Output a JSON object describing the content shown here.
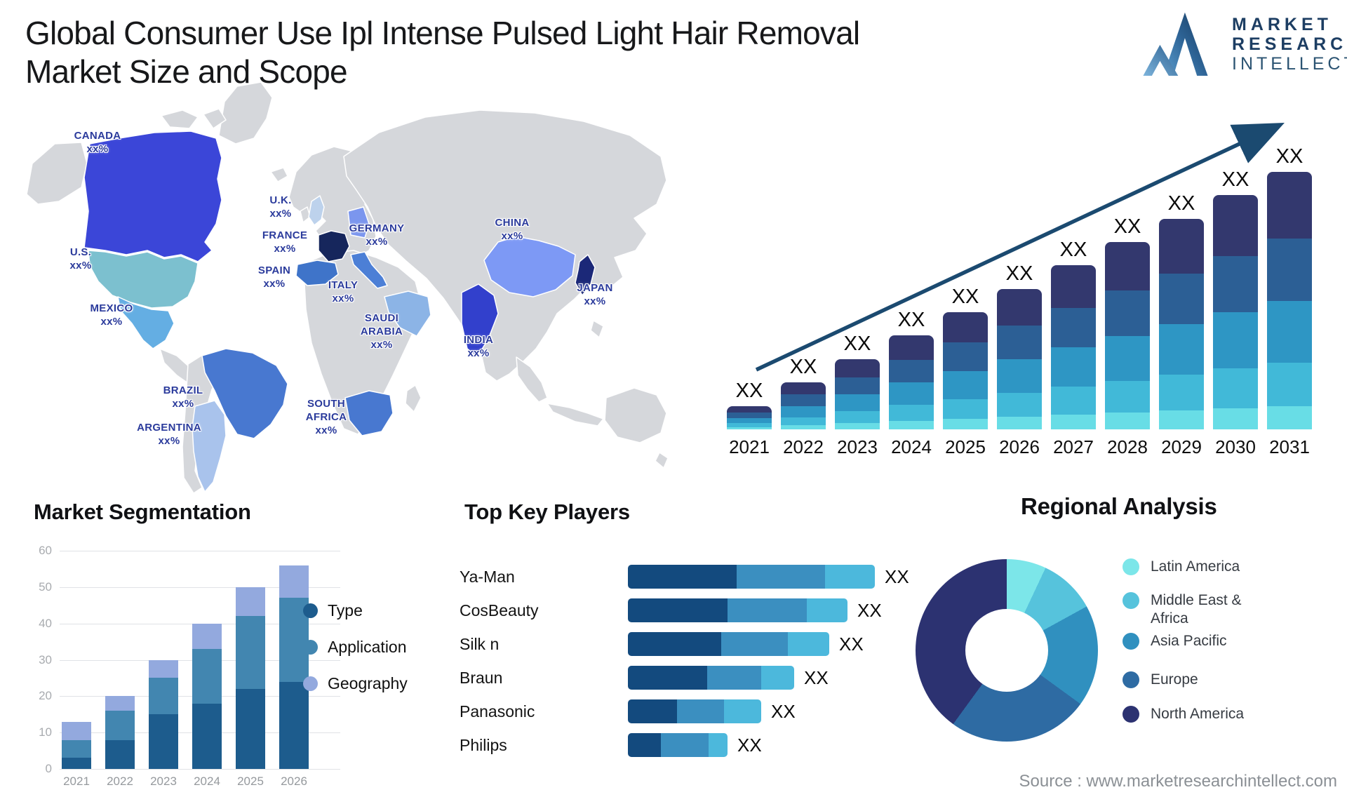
{
  "title_line1": "Global Consumer Use Ipl Intense Pulsed Light Hair Removal",
  "title_line2": "Market Size and Scope",
  "logo": {
    "icon": "mountain-logo",
    "lines": [
      "MARKET",
      "RESEARCH",
      "INTELLECT"
    ]
  },
  "source": "Source : www.marketresearchintellect.com",
  "map": {
    "land_color": "#d5d7db",
    "label_color": "#2b3b9c",
    "countries": [
      {
        "id": "canada",
        "name": "CANADA",
        "value": "xx%",
        "color": "#3b46d8"
      },
      {
        "id": "usa",
        "name": "U.S.",
        "value": "xx%",
        "color": "#7cc0cf"
      },
      {
        "id": "mexico",
        "name": "MEXICO",
        "value": "xx%",
        "color": "#64aee3"
      },
      {
        "id": "brazil",
        "name": "BRAZIL",
        "value": "xx%",
        "color": "#4878d0"
      },
      {
        "id": "argentina",
        "name": "ARGENTINA",
        "value": "xx%",
        "color": "#a9c3ec"
      },
      {
        "id": "uk",
        "name": "U.K.",
        "value": "xx%",
        "color": "#bdd2ec"
      },
      {
        "id": "france",
        "name": "FRANCE",
        "value": "xx%",
        "color": "#16265c"
      },
      {
        "id": "spain",
        "name": "SPAIN",
        "value": "xx%",
        "color": "#3f74c9"
      },
      {
        "id": "germany",
        "name": "GERMANY",
        "value": "xx%",
        "color": "#7b96ee"
      },
      {
        "id": "italy",
        "name": "ITALY",
        "value": "xx%",
        "color": "#4c7fd6"
      },
      {
        "id": "saudi",
        "name": "SAUDI ARABIA",
        "value": "xx%",
        "color": "#8cb4e6"
      },
      {
        "id": "south_africa",
        "name": "SOUTH AFRICA",
        "value": "xx%",
        "color": "#4878d0"
      },
      {
        "id": "china",
        "name": "CHINA",
        "value": "xx%",
        "color": "#7d99f5"
      },
      {
        "id": "india",
        "name": "INDIA",
        "value": "xx%",
        "color": "#3240cc"
      },
      {
        "id": "japan",
        "name": "JAPAN",
        "value": "xx%",
        "color": "#1b2878"
      }
    ]
  },
  "chart_data": [
    {
      "id": "market-forecast",
      "type": "bar",
      "stacked": true,
      "categories": [
        "2021",
        "2022",
        "2023",
        "2024",
        "2025",
        "2026",
        "2027",
        "2028",
        "2029",
        "2030",
        "2031"
      ],
      "bar_label": "XX",
      "relative_heights": [
        33,
        67,
        100,
        134,
        167,
        200,
        234,
        267,
        300,
        334,
        367
      ],
      "segment_shares_bottom_to_top": [
        0.09,
        0.17,
        0.24,
        0.24,
        0.26
      ],
      "segment_colors_bottom_to_top": [
        "#68dde6",
        "#41b9d8",
        "#2e96c4",
        "#2c5f95",
        "#33386e"
      ],
      "trend_arrow": true,
      "arrow_color": "#1b4a70",
      "note": "values shown as XX placeholders; linear growth depicted"
    },
    {
      "id": "market-segmentation",
      "type": "bar",
      "stacked": true,
      "title": "Market Segmentation",
      "categories": [
        "2021",
        "2022",
        "2023",
        "2024",
        "2025",
        "2026"
      ],
      "series": [
        {
          "name": "Type",
          "color": "#1d5c8d",
          "values": [
            3,
            8,
            15,
            18,
            22,
            24
          ]
        },
        {
          "name": "Application",
          "color": "#4286b0",
          "values": [
            5,
            8,
            10,
            15,
            20,
            23
          ]
        },
        {
          "name": "Geography",
          "color": "#93a9de",
          "values": [
            5,
            4,
            5,
            7,
            8,
            9
          ]
        }
      ],
      "ylim": [
        0,
        60
      ],
      "yticks": [
        0,
        10,
        20,
        30,
        40,
        50,
        60
      ],
      "grid": true,
      "legend_position": "right"
    },
    {
      "id": "top-key-players",
      "type": "bar",
      "orientation": "horizontal",
      "stacked": true,
      "title": "Top Key Players",
      "categories": [
        "Ya-Man",
        "CosBeauty",
        "Silk n",
        "Braun",
        "Panasonic",
        "Philips"
      ],
      "value_label": "XX",
      "values_unit": "relative-length",
      "series": [
        {
          "name": "segment-1",
          "color": "#134a7e",
          "values": [
            155,
            142,
            133,
            113,
            70,
            47
          ]
        },
        {
          "name": "segment-2",
          "color": "#3b8fc0",
          "values": [
            126,
            113,
            95,
            77,
            67,
            68
          ]
        },
        {
          "name": "segment-3",
          "color": "#4cb8dc",
          "values": [
            71,
            58,
            59,
            47,
            53,
            27
          ]
        }
      ]
    },
    {
      "id": "regional-analysis",
      "type": "pie",
      "donut": true,
      "title": "Regional Analysis",
      "start_angle_deg": 0,
      "legend_position": "right",
      "slices": [
        {
          "label": "Latin America",
          "color": "#7ce6e9",
          "value": 7
        },
        {
          "label": "Middle East & Africa",
          "color": "#56c3dc",
          "value": 10
        },
        {
          "label": "Asia Pacific",
          "color": "#3090bf",
          "value": 18
        },
        {
          "label": "Europe",
          "color": "#2e6ba3",
          "value": 25
        },
        {
          "label": "North America",
          "color": "#2c3271",
          "value": 40
        }
      ]
    }
  ]
}
